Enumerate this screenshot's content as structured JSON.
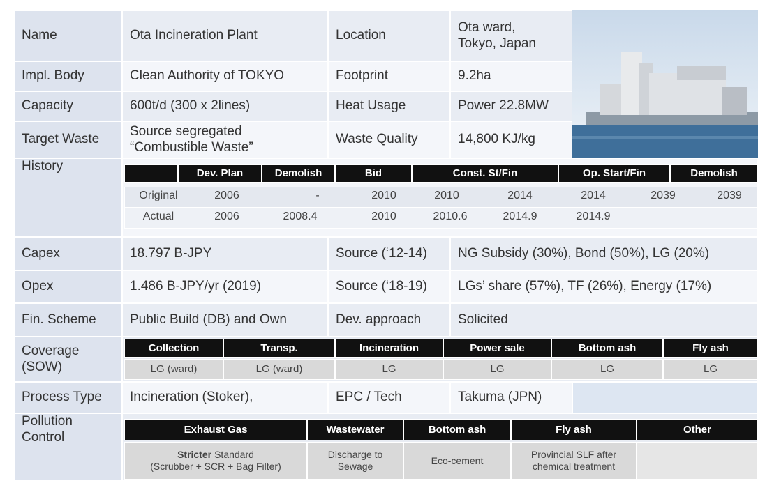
{
  "rows": [
    {
      "label": "Name",
      "value": "Ota Incineration Plant",
      "label2": "Location",
      "value2": "Ota ward,\nTokyo, Japan"
    },
    {
      "label": "Impl. Body",
      "value": "Clean Authority of TOKYO",
      "label2": "Footprint",
      "value2": "9.2ha"
    },
    {
      "label": "Capacity",
      "value": "600t/d (300 x 2lines)",
      "label2": "Heat Usage",
      "value2": "Power 22.8MW"
    },
    {
      "label": "Target Waste",
      "value": "Source segregated\n“Combustible Waste”",
      "label2": "Waste Quality",
      "value2": "14,800 KJ/kg"
    }
  ],
  "history": {
    "label": "History",
    "header": [
      "Dev. Plan",
      "Demolish",
      "Bid",
      "Const. St/Fin",
      "Op. Start/Fin",
      "Demolish"
    ],
    "rows": [
      {
        "label": "Original",
        "values": [
          "2006",
          "-",
          "2010",
          "2010",
          "2014",
          "2014",
          "2039",
          "2039"
        ]
      },
      {
        "label": "Actual",
        "values": [
          "2006",
          "2008.4",
          "2010",
          "2010.6",
          "2014.9",
          "2014.9"
        ]
      }
    ]
  },
  "rows2": [
    {
      "label": "Capex",
      "value": "18.797 B-JPY",
      "label2": "Source (‘12-14)",
      "value2": "NG Subsidy (30%), Bond (50%), LG (20%)"
    },
    {
      "label": "Opex",
      "value": "1.486 B-JPY/yr (2019)",
      "label2": "Source (‘18-19)",
      "value2": "LGs’ share (57%), TF (26%), Energy (17%)"
    },
    {
      "label": "Fin. Scheme",
      "value": "Public Build (DB) and Own",
      "label2": "Dev. approach",
      "value2": "Solicited"
    }
  ],
  "coverage": {
    "label": "Coverage\n(SOW)",
    "header": [
      "Collection",
      "Transp.",
      "Incineration",
      "Power sale",
      "Bottom ash",
      "Fly ash"
    ],
    "values": [
      "LG (ward)",
      "LG (ward)",
      "LG",
      "LG",
      "LG",
      "LG"
    ]
  },
  "process": {
    "label": "Process Type",
    "value": "Incineration (Stoker),",
    "label2": "EPC / Tech",
    "value2": "Takuma (JPN)"
  },
  "pollution": {
    "label": "Pollution\nControl",
    "header": [
      "Exhaust Gas",
      "Wastewater",
      "Bottom ash",
      "Fly ash",
      "Other"
    ],
    "cells": [
      {
        "lead": "Stricter",
        "text": "Standard\n(Scrubber + SCR + Bag Filter)"
      },
      {
        "text": "Discharge to\nSewage"
      },
      {
        "text": "Eco-cement"
      },
      {
        "text": "Provincial SLF after\nchemical treatment"
      }
    ]
  }
}
